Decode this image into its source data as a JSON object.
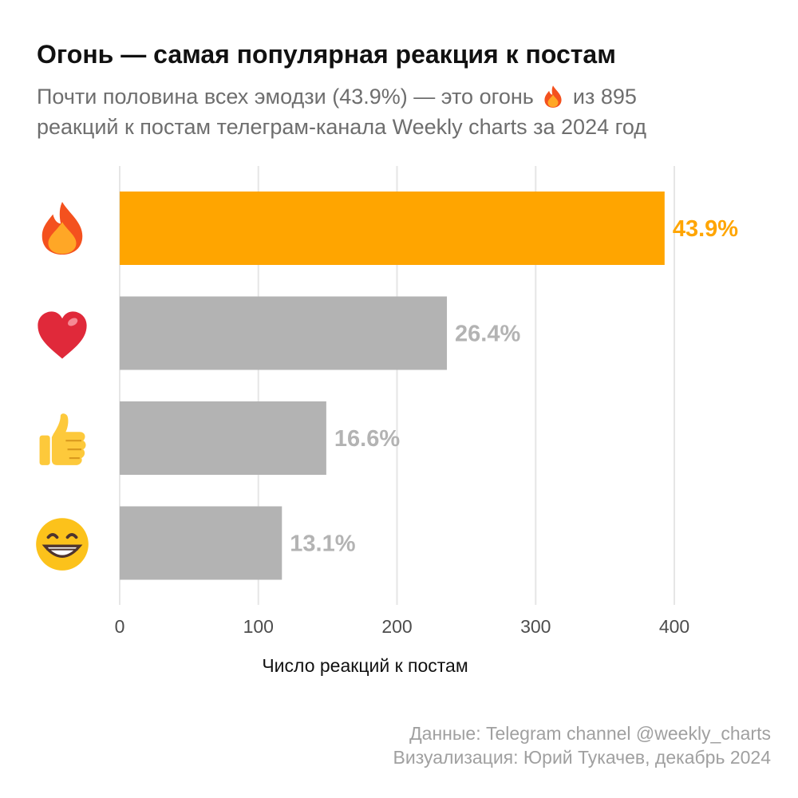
{
  "title": "Огонь — самая популярная реакция к постам",
  "subtitle": {
    "line1_before": "Почти половина всех эмодзи (43.9%) — это огонь",
    "line1_after": "из 895",
    "line2": "реакций к постам телеграм-канала Weekly charts за 2024 год"
  },
  "colors": {
    "highlight": "#FFA500",
    "bar": "#B3B3B3",
    "grid": "#E6E6E6",
    "label_gray": "#B3B3B3"
  },
  "chart_data": {
    "type": "bar",
    "orientation": "horizontal",
    "categories": [
      "fire",
      "heart",
      "thumbs-up",
      "grinning-face"
    ],
    "category_icons": [
      "fire-icon",
      "red-heart-icon",
      "thumbs-up-icon",
      "beaming-face-icon"
    ],
    "values": [
      393,
      236,
      149,
      117
    ],
    "labels": [
      "43.9%",
      "26.4%",
      "16.6%",
      "13.1%"
    ],
    "highlight_index": 0,
    "xlabel": "Число реакций к постам",
    "xlim": [
      0,
      400
    ],
    "xticks": [
      0,
      100,
      200,
      300,
      400
    ],
    "grid": true,
    "legend": "none"
  },
  "caption": {
    "line1": "Данные: Telegram channel @weekly_charts",
    "line2": "Визуализация: Юрий Тукачев, декабрь 2024"
  }
}
